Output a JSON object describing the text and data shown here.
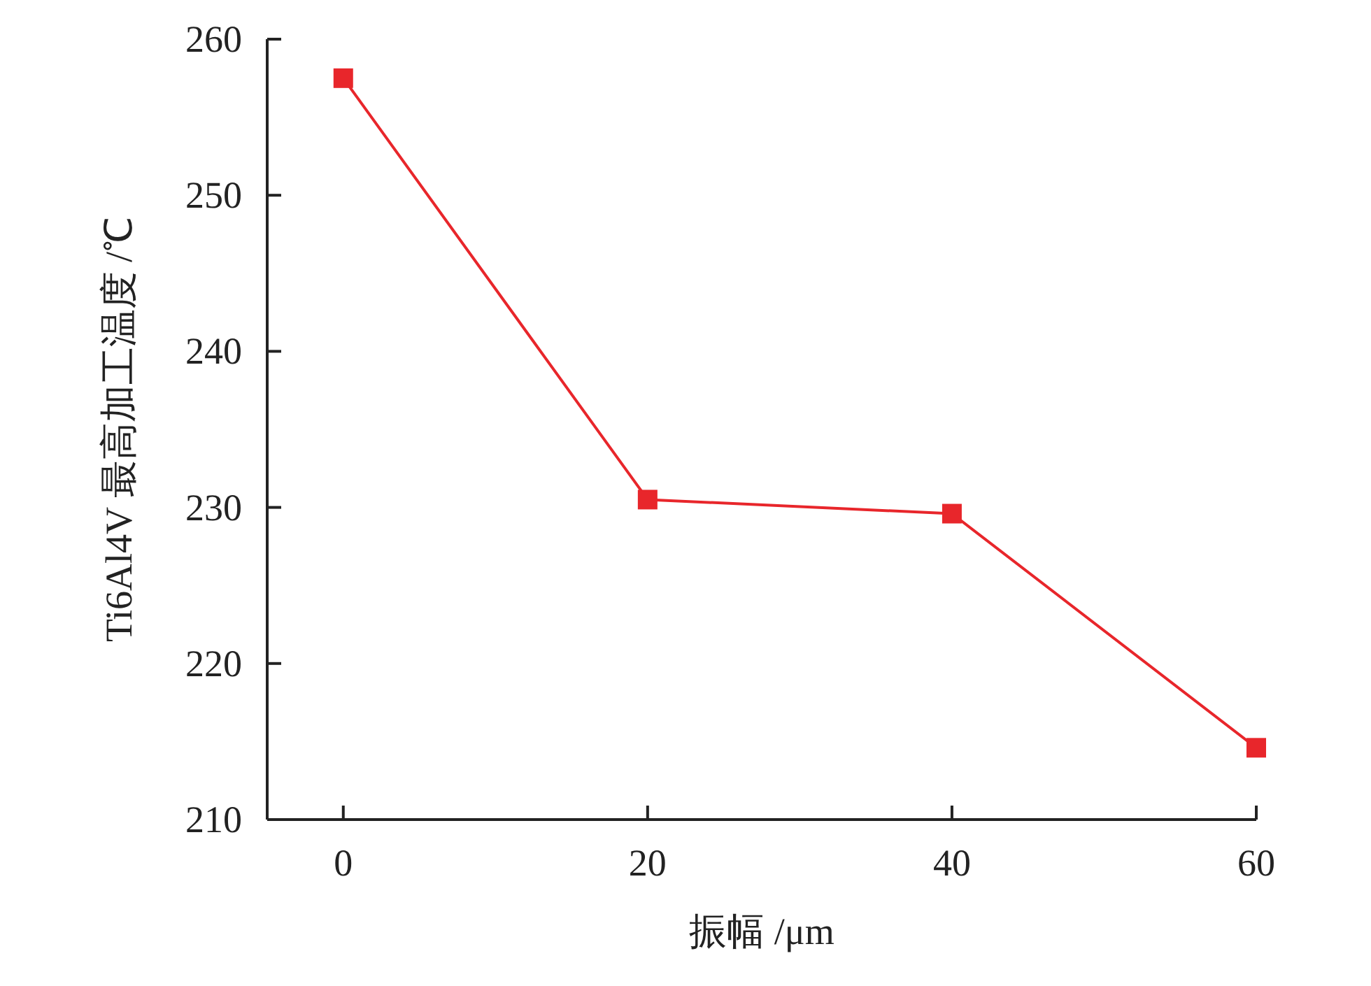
{
  "chart_data": {
    "type": "line",
    "xlabel": "振幅 /μm",
    "ylabel": "Ti6Al4V 最高加工温度 /℃",
    "x": [
      0,
      20,
      40,
      60
    ],
    "series": [
      {
        "color": "#e8262b",
        "values": [
          257.5,
          230.5,
          229.6,
          214.6
        ]
      }
    ],
    "xlim": [
      -5,
      60
    ],
    "xticks": [
      0,
      20,
      40,
      60
    ],
    "ylim": [
      210,
      260
    ],
    "yticks": [
      210,
      220,
      230,
      240,
      250,
      260
    ],
    "marker": "square",
    "line_style": "solid",
    "grid": false
  }
}
